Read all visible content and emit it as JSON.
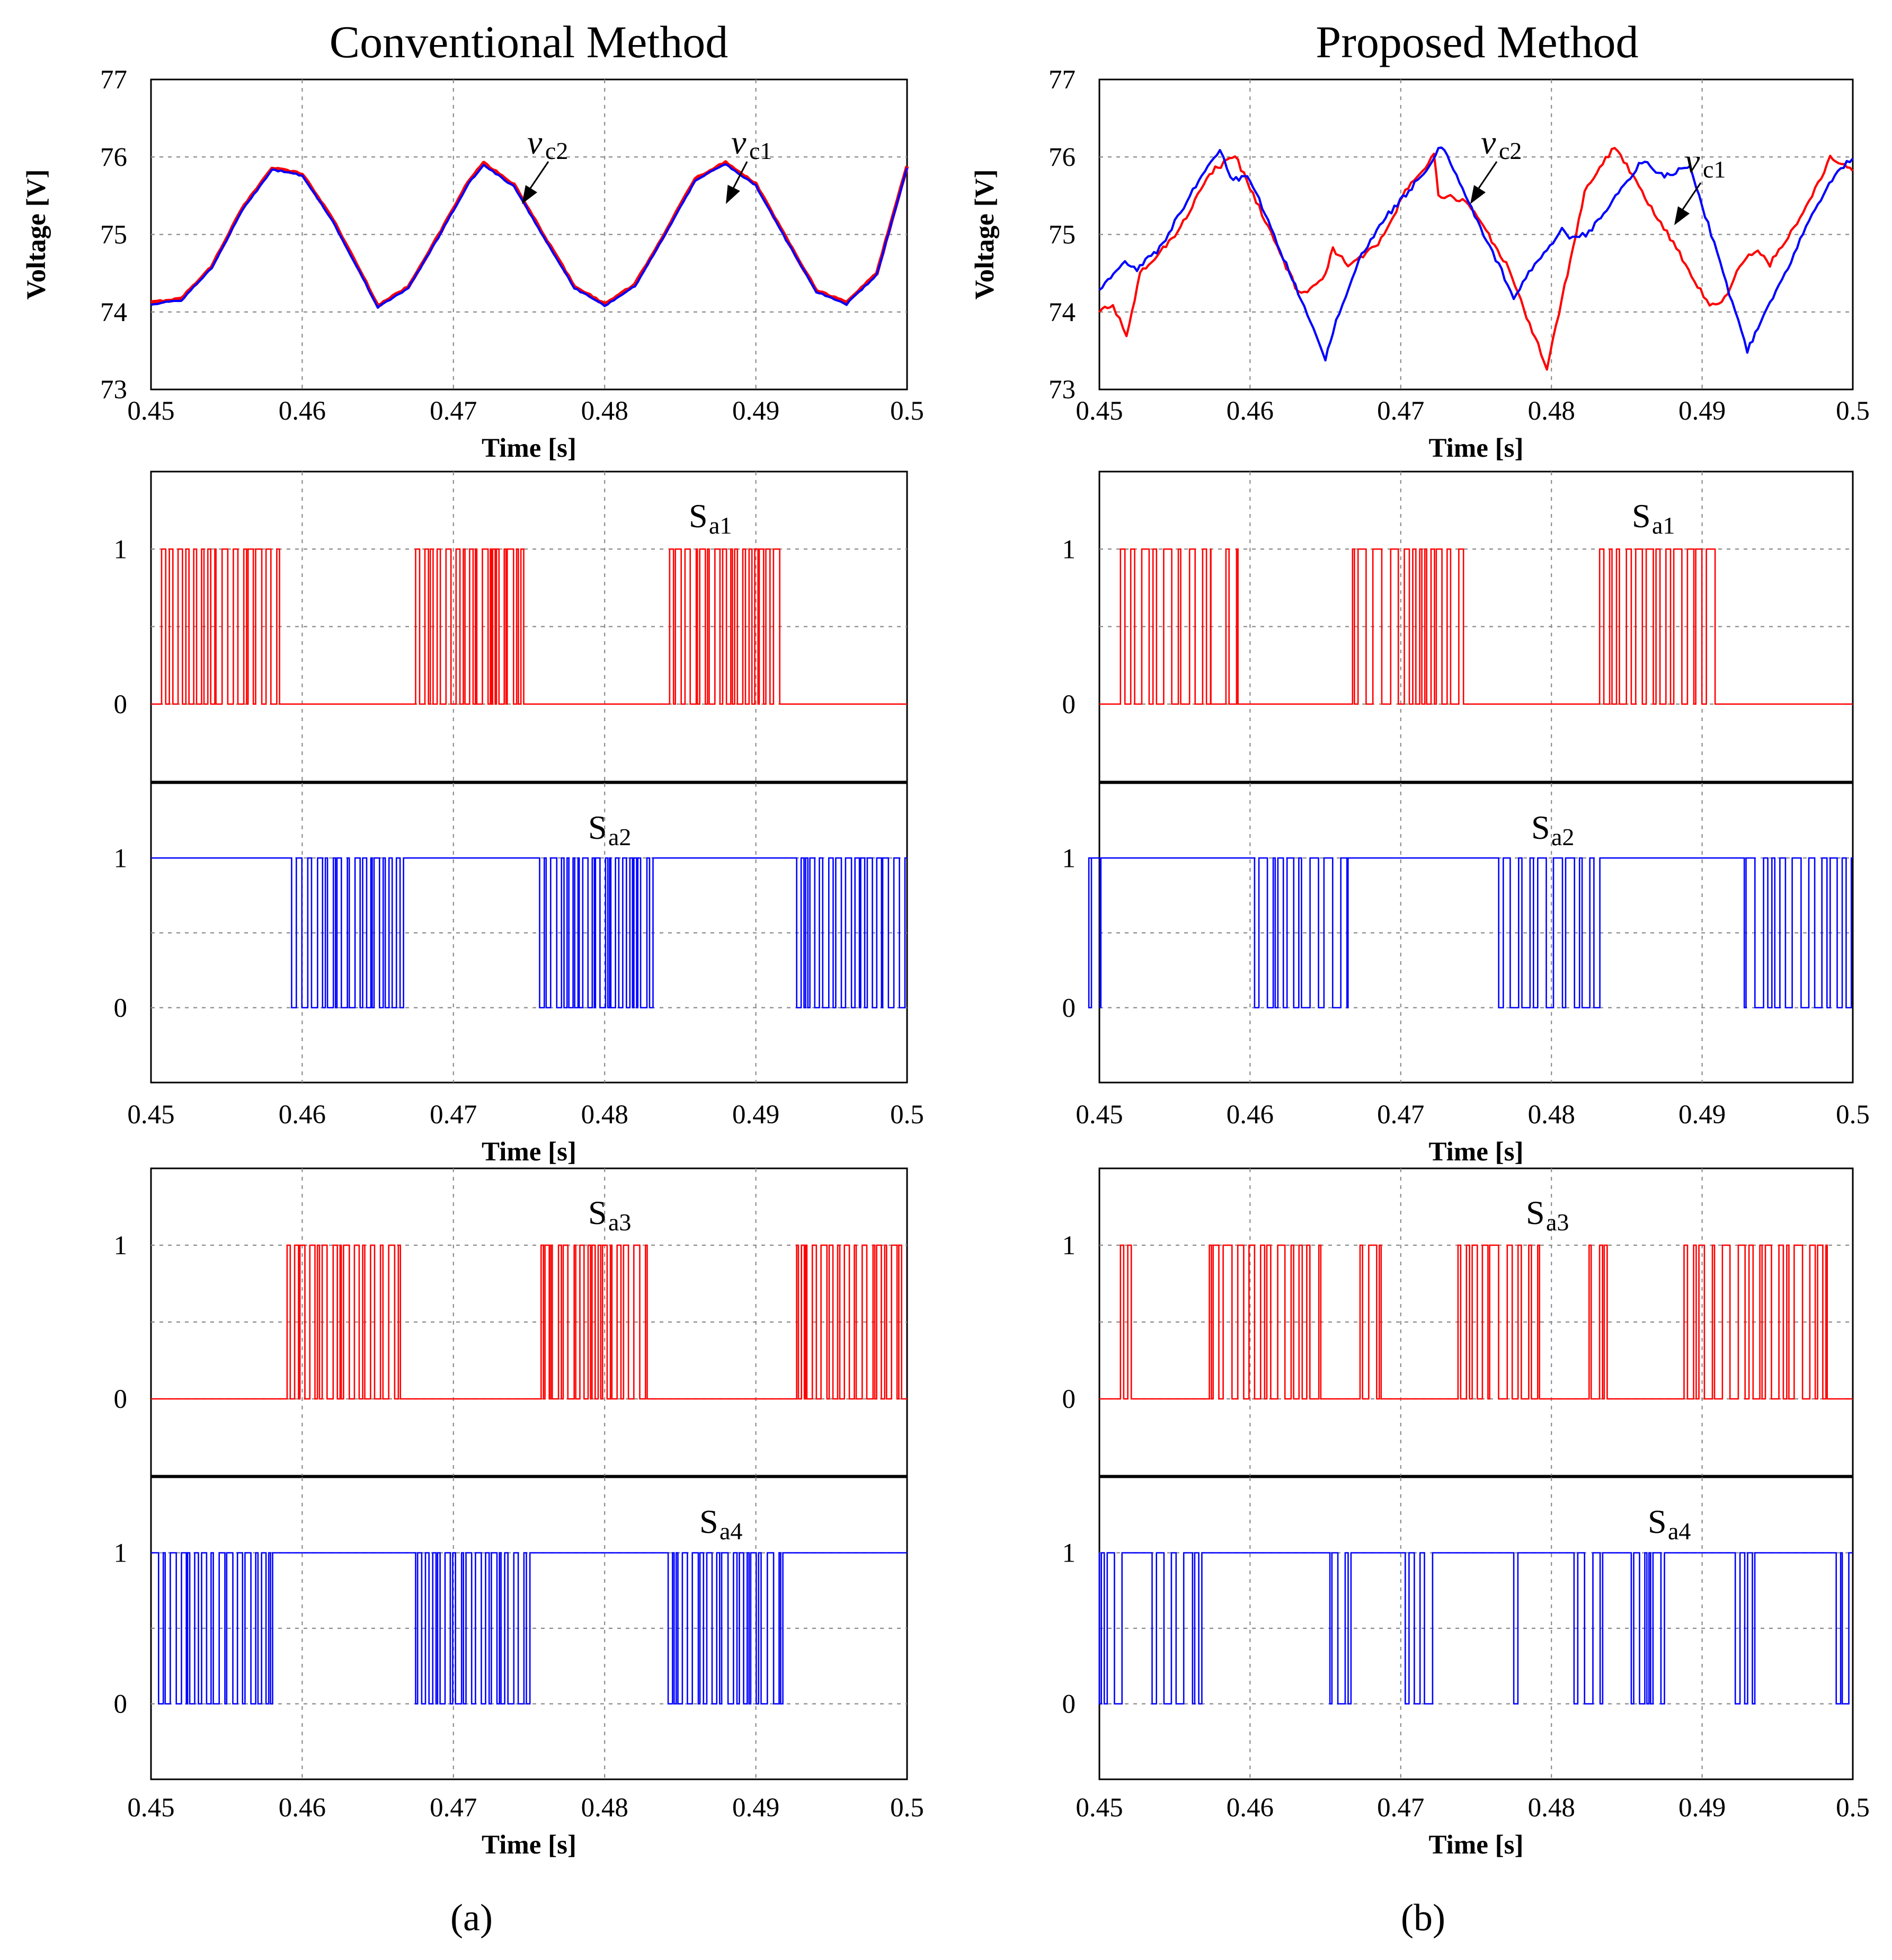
{
  "chart_data": [
    {
      "id": "a",
      "title": "Conventional Method",
      "panel_label": "(a)",
      "plots": [
        {
          "type": "line",
          "ylabel": "Voltage [V]",
          "xlabel": "Time [s]",
          "xlim": [
            0.45,
            0.5
          ],
          "ylim": [
            73,
            77
          ],
          "xticks": [
            "0.45",
            "0.46",
            "0.47",
            "0.48",
            "0.49",
            "0.5"
          ],
          "yticks": [
            "73",
            "74",
            "75",
            "76",
            "77"
          ],
          "series": [
            {
              "name": "vc1",
              "color": "#ff0000",
              "x": [
                0.45,
                0.452,
                0.454,
                0.456,
                0.458,
                0.46,
                0.462,
                0.464,
                0.465,
                0.467,
                0.469,
                0.471,
                0.472,
                0.474,
                0.476,
                0.478,
                0.48,
                0.482,
                0.484,
                0.486,
                0.488,
                0.49,
                0.492,
                0.494,
                0.496,
                0.498,
                0.5
              ],
              "y": [
                74.12,
                74.17,
                74.58,
                75.32,
                75.86,
                75.78,
                75.2,
                74.46,
                74.08,
                74.32,
                74.98,
                75.68,
                75.92,
                75.64,
                74.98,
                74.33,
                74.1,
                74.35,
                75.02,
                75.72,
                75.93,
                75.65,
                74.95,
                74.28,
                74.12,
                74.5,
                75.88
              ]
            },
            {
              "name": "vc2",
              "color": "#0000ff",
              "x": [
                0.45,
                0.452,
                0.454,
                0.456,
                0.458,
                0.46,
                0.462,
                0.464,
                0.465,
                0.467,
                0.469,
                0.471,
                0.472,
                0.474,
                0.476,
                0.478,
                0.48,
                0.482,
                0.484,
                0.486,
                0.488,
                0.49,
                0.492,
                0.494,
                0.496,
                0.498,
                0.5
              ],
              "y": [
                74.1,
                74.15,
                74.56,
                75.3,
                75.84,
                75.76,
                75.18,
                74.44,
                74.06,
                74.3,
                74.96,
                75.66,
                75.9,
                75.62,
                74.96,
                74.31,
                74.08,
                74.33,
                75.0,
                75.7,
                75.91,
                75.63,
                74.93,
                74.26,
                74.1,
                74.48,
                75.86
              ]
            }
          ],
          "annotations": [
            {
              "text": "v",
              "subscript": "c2"
            },
            {
              "text": "v",
              "subscript": "c1"
            }
          ]
        },
        {
          "type": "switching",
          "ylim": [
            -0.5,
            1.5
          ],
          "yticks": [
            "0",
            "1"
          ],
          "xticks": [
            "0.45",
            "0.46",
            "0.47",
            "0.48",
            "0.49",
            "0.5"
          ],
          "xlabel": "Time [s]",
          "signals": [
            {
              "name": "Sa1",
              "label": "S",
              "subscript": "a1",
              "color": "#ff0000",
              "default": 0,
              "bursts": [
                [
                  0.4507,
                  0.4585
                ],
                [
                  0.4675,
                  0.4748
                ],
                [
                  0.4843,
                  0.4917
                ]
              ]
            },
            {
              "name": "Sa2",
              "label": "S",
              "subscript": "a2",
              "color": "#0000ff",
              "default": 1,
              "bursts": [
                [
                  0.4593,
                  0.4667
                ],
                [
                  0.4757,
                  0.4832
                ],
                [
                  0.4927,
                  0.4999
                ]
              ]
            }
          ]
        },
        {
          "type": "switching",
          "ylim": [
            -0.5,
            1.5
          ],
          "yticks": [
            "0",
            "1"
          ],
          "xticks": [
            "0.45",
            "0.46",
            "0.47",
            "0.48",
            "0.49",
            "0.5"
          ],
          "xlabel": "Time [s]",
          "signals": [
            {
              "name": "Sa3",
              "label": "S",
              "subscript": "a3",
              "color": "#ff0000",
              "default": 0,
              "bursts": [
                [
                  0.459,
                  0.4665
                ],
                [
                  0.4758,
                  0.4832
                ],
                [
                  0.4927,
                  0.4999
                ]
              ]
            },
            {
              "name": "Sa4",
              "label": "S",
              "subscript": "a4",
              "color": "#0000ff",
              "default": 1,
              "bursts": [
                [
                  0.4505,
                  0.4582
                ],
                [
                  0.4675,
                  0.4752
                ],
                [
                  0.4842,
                  0.4918
                ]
              ]
            }
          ]
        }
      ]
    },
    {
      "id": "b",
      "title": "Proposed Method",
      "panel_label": "(b)",
      "plots": [
        {
          "type": "line",
          "ylabel": "Voltage [V]",
          "xlabel": "Time [s]",
          "xlim": [
            0.45,
            0.5
          ],
          "ylim": [
            73,
            77
          ],
          "xticks": [
            "0.45",
            "0.46",
            "0.47",
            "0.48",
            "0.49",
            "0.5"
          ],
          "yticks": [
            "73",
            "74",
            "75",
            "76",
            "77"
          ],
          "series": [
            {
              "name": "vc1",
              "color": "#ff0000",
              "x": [
                0.45,
                0.4509,
                0.4518,
                0.4527,
                0.455,
                0.4575,
                0.459,
                0.4632,
                0.4638,
                0.465,
                0.4655,
                0.4665,
                0.4685,
                0.4705,
                0.4722,
                0.4725,
                0.4745,
                0.477,
                0.4797,
                0.4805,
                0.4822,
                0.4842,
                0.4858,
                0.4885,
                0.4905,
                0.4915,
                0.4925,
                0.4935,
                0.4945,
                0.4965,
                0.4985,
                0.5
              ],
              "y": [
                74.0,
                74.1,
                73.68,
                74.5,
                74.98,
                75.82,
                76.02,
                74.25,
                74.24,
                74.48,
                74.82,
                74.62,
                74.85,
                75.62,
                76.02,
                75.52,
                75.42,
                74.62,
                73.28,
                73.98,
                75.55,
                76.15,
                75.62,
                74.75,
                74.08,
                74.18,
                74.58,
                74.8,
                74.62,
                75.2,
                75.98,
                75.82
              ]
            },
            {
              "name": "vc2",
              "color": "#0000ff",
              "x": [
                0.45,
                0.4515,
                0.4525,
                0.454,
                0.456,
                0.458,
                0.4587,
                0.46,
                0.465,
                0.4655,
                0.4672,
                0.469,
                0.4715,
                0.4727,
                0.4775,
                0.4785,
                0.4807,
                0.4812,
                0.4825,
                0.486,
                0.4875,
                0.4892,
                0.493,
                0.4937,
                0.4955,
                0.4975,
                0.499,
                0.5
              ],
              "y": [
                74.25,
                74.65,
                74.55,
                74.82,
                75.5,
                76.1,
                75.72,
                75.72,
                73.4,
                73.75,
                74.68,
                75.22,
                75.78,
                76.15,
                74.2,
                74.5,
                75.05,
                74.95,
                75.02,
                75.95,
                75.75,
                75.88,
                73.5,
                73.78,
                74.5,
                75.35,
                75.82,
                75.98
              ]
            }
          ],
          "annotations": [
            {
              "text": "v",
              "subscript": "c2"
            },
            {
              "text": "v",
              "subscript": "c1"
            }
          ]
        },
        {
          "type": "switching",
          "ylim": [
            -0.5,
            1.5
          ],
          "yticks": [
            "0",
            "1"
          ],
          "xticks": [
            "0.45",
            "0.46",
            "0.47",
            "0.48",
            "0.49",
            "0.5"
          ],
          "xlabel": "Time [s]",
          "signals": [
            {
              "name": "Sa1",
              "label": "S",
              "subscript": "a1",
              "color": "#ff0000",
              "default": 0,
              "bursts": [
                [
                  0.4514,
                  0.4574
                ],
                [
                  0.4584,
                  0.4592
                ],
                [
                  0.4668,
                  0.4742
                ],
                [
                  0.4832,
                  0.4912
                ]
              ]
            },
            {
              "name": "Sa2",
              "label": "S",
              "subscript": "a2",
              "color": "#0000ff",
              "default": 1,
              "bursts": [
                [
                  0.4493,
                  0.4501
                ],
                [
                  0.4603,
                  0.4665
                ],
                [
                  0.4765,
                  0.4833
                ],
                [
                  0.4928,
                  0.4999
                ]
              ]
            }
          ]
        },
        {
          "type": "switching",
          "ylim": [
            -0.5,
            1.5
          ],
          "yticks": [
            "0",
            "1"
          ],
          "xticks": [
            "0.45",
            "0.46",
            "0.47",
            "0.48",
            "0.49",
            "0.5"
          ],
          "xlabel": "Time [s]",
          "signals": [
            {
              "name": "Sa3",
              "label": "S",
              "subscript": "a3",
              "color": "#ff0000",
              "default": 0,
              "bursts": [
                [
                  0.4514,
                  0.4524
                ],
                [
                  0.4573,
                  0.4603
                ],
                [
                  0.4607,
                  0.4648
                ],
                [
                  0.4673,
                  0.4687
                ],
                [
                  0.4738,
                  0.4795
                ],
                [
                  0.4825,
                  0.4837
                ],
                [
                  0.4888,
                  0.4947
                ],
                [
                  0.4951,
                  0.4983
                ]
              ]
            },
            {
              "name": "Sa4",
              "label": "S",
              "subscript": "a4",
              "color": "#0000ff",
              "default": 1,
              "bursts": [
                [
                  0.45,
                  0.4515
                ],
                [
                  0.4535,
                  0.4568
                ],
                [
                  0.4653,
                  0.4667
                ],
                [
                  0.4703,
                  0.4725
                ],
                [
                  0.4775,
                  0.4778
                ],
                [
                  0.4815,
                  0.4834
                ],
                [
                  0.4853,
                  0.4875
                ],
                [
                  0.4922,
                  0.4935
                ],
                [
                  0.4989,
                  0.5
                ]
              ]
            }
          ]
        }
      ]
    }
  ]
}
